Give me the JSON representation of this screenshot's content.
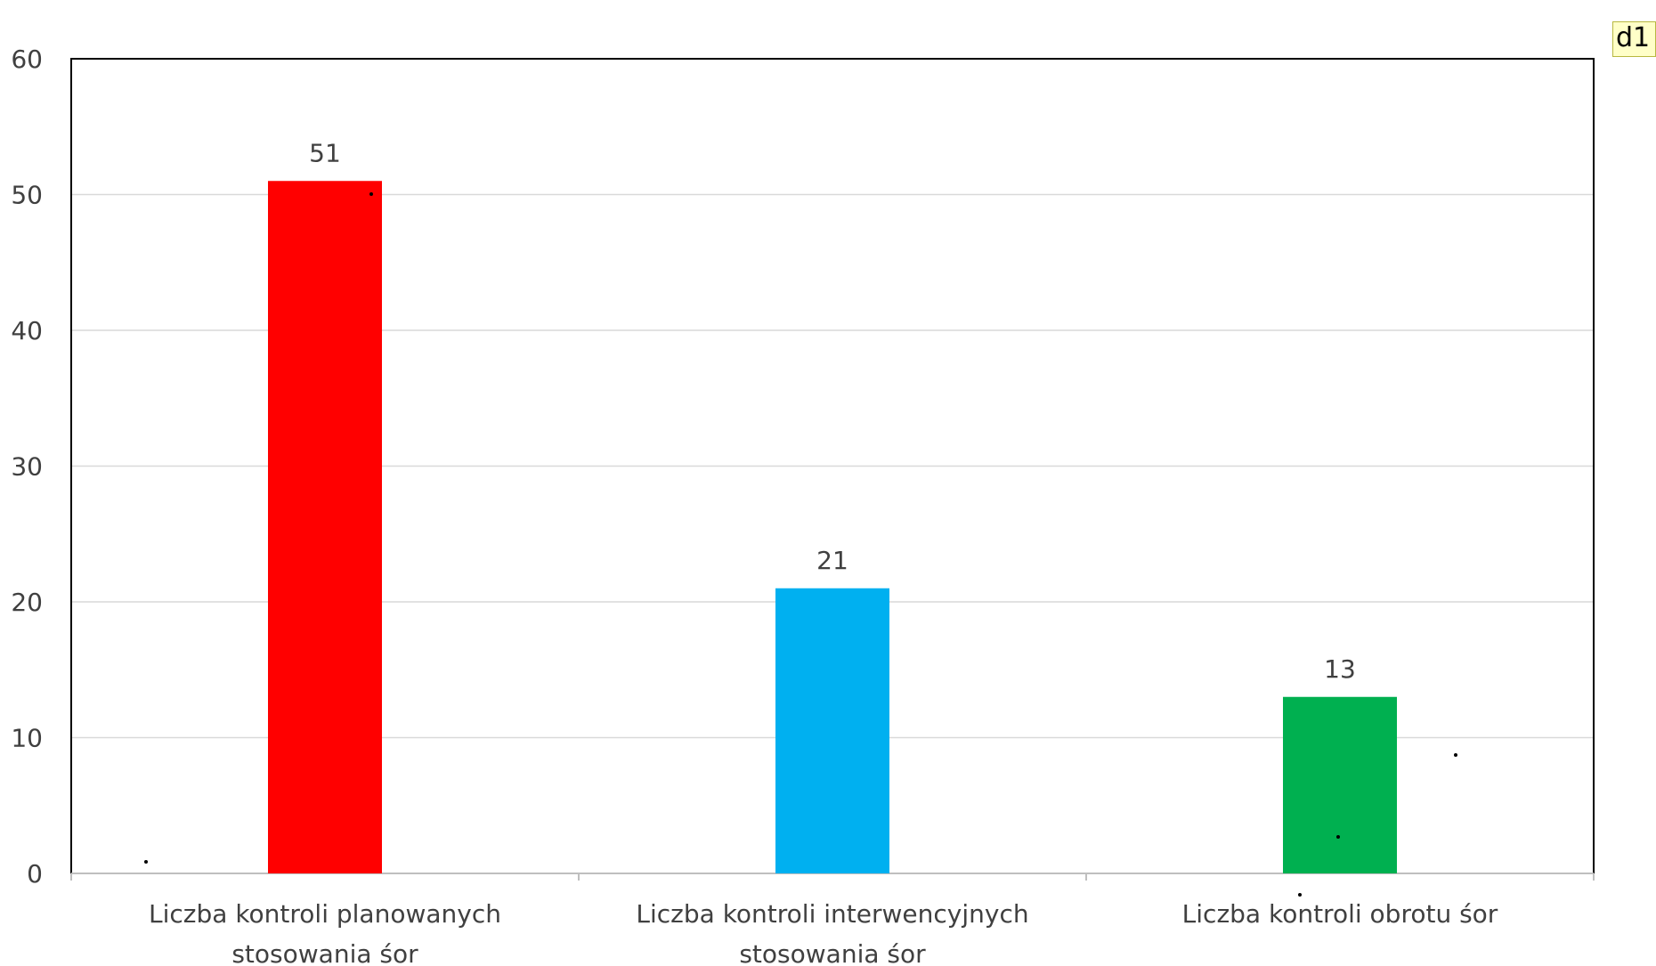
{
  "badge": "d1",
  "chart_data": {
    "type": "bar",
    "categories": [
      [
        "Liczba kontroli planowanych",
        "stosowania śor"
      ],
      [
        "Liczba kontroli interwencyjnych",
        "stosowania śor"
      ],
      [
        "Liczba kontroli obrotu śor"
      ]
    ],
    "values": [
      51,
      21,
      13
    ],
    "data_labels": [
      "51",
      "21",
      "13"
    ],
    "bar_colors": [
      "#ff0000",
      "#00b0f0",
      "#00b050"
    ],
    "ylim": [
      0,
      60
    ],
    "yticks": [
      0,
      10,
      20,
      30,
      40,
      50,
      60
    ],
    "grid": true,
    "title": "",
    "xlabel": "",
    "ylabel": ""
  }
}
